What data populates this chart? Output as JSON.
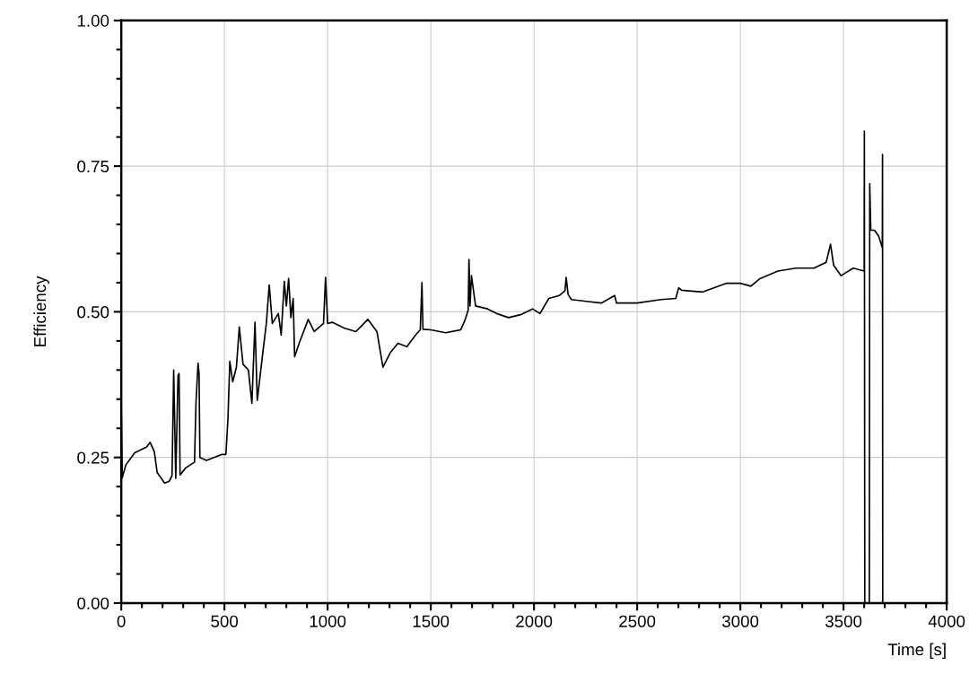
{
  "chart_data": {
    "type": "line",
    "xlabel": "Time [s]",
    "ylabel": "Efficiency",
    "x": [
      0,
      5,
      22,
      65,
      123,
      140,
      160,
      174,
      210,
      232,
      246,
      254,
      264,
      275,
      280,
      285,
      312,
      355,
      362,
      372,
      377,
      381,
      413,
      486,
      507,
      517,
      526,
      540,
      558,
      572,
      590,
      616,
      633,
      648,
      659,
      688,
      703,
      717,
      732,
      761,
      775,
      790,
      800,
      811,
      822,
      833,
      840,
      862,
      906,
      935,
      980,
      990,
      1000,
      1022,
      1080,
      1137,
      1195,
      1239,
      1268,
      1304,
      1341,
      1384,
      1428,
      1449,
      1457,
      1462,
      1500,
      1572,
      1645,
      1667,
      1681,
      1685,
      1690,
      1697,
      1717,
      1775,
      1819,
      1877,
      1935,
      1993,
      2029,
      2072,
      2123,
      2150,
      2156,
      2165,
      2181,
      2253,
      2326,
      2391,
      2400,
      2500,
      2616,
      2687,
      2701,
      2716,
      2818,
      2934,
      3000,
      3051,
      3095,
      3182,
      3270,
      3357,
      3416,
      3437,
      3452,
      3488,
      3547,
      3600,
      3601,
      3603,
      3625,
      3627,
      3632,
      3650,
      3670,
      3688,
      3689,
      3690
    ],
    "series": [
      {
        "color": "#000000",
        "values": [
          0.333,
          0.215,
          0.237,
          0.258,
          0.268,
          0.276,
          0.26,
          0.224,
          0.206,
          0.209,
          0.219,
          0.4,
          0.214,
          0.39,
          0.394,
          0.22,
          0.232,
          0.242,
          0.343,
          0.412,
          0.394,
          0.25,
          0.245,
          0.255,
          0.255,
          0.317,
          0.415,
          0.38,
          0.405,
          0.474,
          0.41,
          0.4,
          0.343,
          0.482,
          0.348,
          0.436,
          0.48,
          0.546,
          0.48,
          0.497,
          0.46,
          0.552,
          0.51,
          0.557,
          0.49,
          0.523,
          0.423,
          0.446,
          0.487,
          0.466,
          0.48,
          0.559,
          0.48,
          0.482,
          0.472,
          0.466,
          0.487,
          0.466,
          0.405,
          0.43,
          0.446,
          0.44,
          0.461,
          0.469,
          0.55,
          0.47,
          0.469,
          0.464,
          0.469,
          0.487,
          0.503,
          0.59,
          0.51,
          0.562,
          0.51,
          0.505,
          0.497,
          0.49,
          0.495,
          0.505,
          0.497,
          0.523,
          0.528,
          0.536,
          0.559,
          0.53,
          0.521,
          0.518,
          0.515,
          0.528,
          0.515,
          0.515,
          0.521,
          0.523,
          0.541,
          0.537,
          0.534,
          0.549,
          0.549,
          0.544,
          0.557,
          0.57,
          0.575,
          0.575,
          0.585,
          0.616,
          0.58,
          0.562,
          0.575,
          0.57,
          0.81,
          0.0,
          0.0,
          0.72,
          0.64,
          0.64,
          0.63,
          0.61,
          0.77,
          0.0
        ]
      }
    ],
    "xlim": [
      0,
      4000
    ],
    "ylim": [
      0,
      1
    ],
    "xticks": [
      0,
      {
        "value": 100,
        "label": null
      },
      {
        "value": 200,
        "label": null
      },
      {
        "value": 300,
        "label": null
      },
      {
        "value": 400,
        "label": null
      },
      500,
      {
        "value": 600,
        "label": null
      },
      {
        "value": 700,
        "label": null
      },
      {
        "value": 800,
        "label": null
      },
      {
        "value": 900,
        "label": null
      },
      1000,
      {
        "value": 1100,
        "label": null
      },
      {
        "value": 1200,
        "label": null
      },
      {
        "value": 1300,
        "label": null
      },
      {
        "value": 1400,
        "label": null
      },
      1500,
      {
        "value": 1600,
        "label": null
      },
      {
        "value": 1700,
        "label": null
      },
      {
        "value": 1800,
        "label": null
      },
      {
        "value": 1900,
        "label": null
      },
      2000,
      {
        "value": 2100,
        "label": null
      },
      {
        "value": 2200,
        "label": null
      },
      {
        "value": 2300,
        "label": null
      },
      {
        "value": 2400,
        "label": null
      },
      2500,
      {
        "value": 2600,
        "label": null
      },
      {
        "value": 2700,
        "label": null
      },
      {
        "value": 2800,
        "label": null
      },
      {
        "value": 2900,
        "label": null
      },
      3000,
      {
        "value": 3100,
        "label": null
      },
      {
        "value": 3200,
        "label": null
      },
      {
        "value": 3300,
        "label": null
      },
      {
        "value": 3400,
        "label": null
      },
      3500,
      {
        "value": 3600,
        "label": null
      },
      {
        "value": 3700,
        "label": null
      },
      {
        "value": 3800,
        "label": null
      },
      {
        "value": 3900,
        "label": null
      },
      4000
    ],
    "yticks": [
      {
        "value": 0,
        "label": "0.00"
      },
      {
        "value": 0.05,
        "label": null
      },
      {
        "value": 0.1,
        "label": null
      },
      {
        "value": 0.15,
        "label": null
      },
      {
        "value": 0.2,
        "label": null
      },
      {
        "value": 0.25,
        "label": "0.25"
      },
      {
        "value": 0.3,
        "label": null
      },
      {
        "value": 0.35,
        "label": null
      },
      {
        "value": 0.4,
        "label": null
      },
      {
        "value": 0.45,
        "label": null
      },
      {
        "value": 0.5,
        "label": "0.50"
      },
      {
        "value": 0.55,
        "label": null
      },
      {
        "value": 0.6,
        "label": null
      },
      {
        "value": 0.65,
        "label": null
      },
      {
        "value": 0.7,
        "label": null
      },
      {
        "value": 0.75,
        "label": "0.75"
      },
      {
        "value": 0.8,
        "label": null
      },
      {
        "value": 0.85,
        "label": null
      },
      {
        "value": 0.9,
        "label": null
      },
      {
        "value": 0.95,
        "label": null
      },
      {
        "value": 1,
        "label": "1.00"
      }
    ],
    "grid": true,
    "marker": "none",
    "line_style": "solid"
  }
}
